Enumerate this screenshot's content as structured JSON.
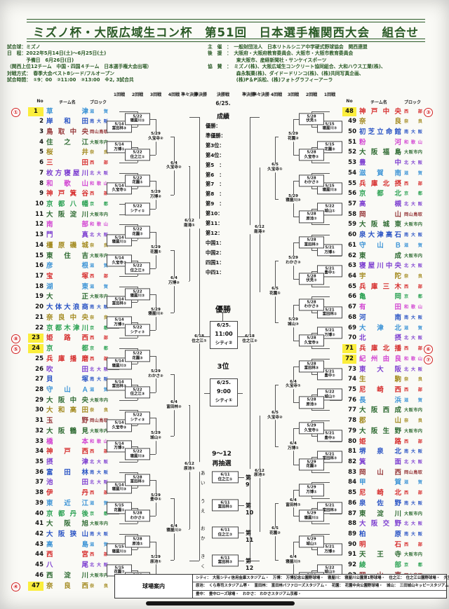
{
  "header": {
    "title": "ミズノ杯・大阪広域生コン杯　第51回　日本選手権関西大会　組合せ",
    "info_left": [
      "試合球：ミズノ",
      "日　程：2022年5月14日(土)～6月25日(土)",
      "　　　　予備日　6月26日(日)",
      "（関西上位12チーム　中国・四国４チーム　日本選手権大会出場）",
      "対戦方式：　春季大会ベスト8シード/フルオープン",
      "",
      "試合時間：　①9：00　②11:00　③13:00　※2, 3試合共"
    ],
    "info_right": [
      "主　催　：　一般財団法人　日本リトルシニア中学硬式野球協会　関西連盟",
      "後　援　：　大阪府・大阪府教育委員会、大阪市・大阪市教育委員会",
      "　　　　　　東大阪市、産経新聞社・サンケイスポーツ",
      "協　賛　：　ミズノ(株)、大阪広域生コンクリート協同組合、大和ハウス工業(株)、",
      "　　　　　　森永製菓(株)、ダイドードリンコ(株)、(株)共同写真企画、",
      "　　　　　　(株)P＆P浜松、(株)フォトグラフィーアーラ"
    ]
  },
  "round_headers_left": [
    "1回戦",
    "2回戦",
    "3回戦",
    "4回戦",
    "準々決勝",
    "準決勝"
  ],
  "round_headers_right": [
    "準決勝",
    "準々決勝",
    "4回戦",
    "3回戦",
    "2回戦",
    "1回戦"
  ],
  "final_header": {
    "label": "決勝戦",
    "date": "6/25."
  },
  "col_headers": {
    "no": "No",
    "team": "チーム名",
    "block": "ブロック"
  },
  "block_colors": {
    "滋賀": "#3d94d6",
    "南大阪": "#2953c4",
    "岡山鳥取": "#96383a",
    "大阪市内": "#2f6b33",
    "奈良": "#a38a1f",
    "西部": "#d62e2e",
    "北大阪": "#7d3fd0",
    "和歌山": "#d245d2",
    "京都": "#2fa356"
  },
  "teams_left": [
    {
      "no": 1,
      "name": "草津",
      "block": "滋賀",
      "seed": "①",
      "hl": true
    },
    {
      "no": 2,
      "name": "岸和田",
      "block": "南大阪"
    },
    {
      "no": 3,
      "name": "鳥取中央",
      "block": "岡山鳥取"
    },
    {
      "no": 4,
      "name": "住之江",
      "block": "大阪市内"
    },
    {
      "no": 5,
      "name": "桜井",
      "block": "奈良"
    },
    {
      "no": 6,
      "name": "三田",
      "block": "西部"
    },
    {
      "no": 7,
      "name": "枚方寝屋川",
      "block": "北大阪"
    },
    {
      "no": 8,
      "name": "和歌山",
      "block": "和歌山"
    },
    {
      "no": 9,
      "name": "神戸箕谷",
      "block": "西部"
    },
    {
      "no": 10,
      "name": "京都八幡",
      "block": "京都"
    },
    {
      "no": 11,
      "name": "大阪淀川",
      "block": "大阪市内"
    },
    {
      "no": 12,
      "name": "南部",
      "block": "和歌山"
    },
    {
      "no": 13,
      "name": "門真",
      "block": "北大阪"
    },
    {
      "no": 14,
      "name": "橿原磯城",
      "block": "奈良"
    },
    {
      "no": 15,
      "name": "東住吉",
      "block": "大阪市内"
    },
    {
      "no": 16,
      "name": "彦根",
      "block": "滋賀"
    },
    {
      "no": 17,
      "name": "宝塚",
      "block": "西部"
    },
    {
      "no": 18,
      "name": "湖東",
      "block": "滋賀"
    },
    {
      "no": 19,
      "name": "大正",
      "block": "大阪市内"
    },
    {
      "no": 20,
      "name": "大体大浪商",
      "block": "南大阪"
    },
    {
      "no": 21,
      "name": "奈良中央",
      "block": "奈良"
    },
    {
      "no": 22,
      "name": "京都木津川",
      "block": "京都"
    },
    {
      "no": 23,
      "name": "姫路西",
      "block": "西部",
      "seed": "⑧",
      "hl": true
    },
    {
      "no": 24,
      "name": "京都",
      "block": "京都",
      "seed": "⑤",
      "hl": true
    },
    {
      "no": 25,
      "name": "兵庫播磨",
      "block": "西部"
    },
    {
      "no": 26,
      "name": "吹田",
      "block": "北大阪"
    },
    {
      "no": 27,
      "name": "貝塚",
      "block": "南大阪"
    },
    {
      "no": 28,
      "name": "守山Ａ",
      "block": "滋賀"
    },
    {
      "no": 29,
      "name": "大阪中央",
      "block": "大阪市内"
    },
    {
      "no": 30,
      "name": "大和高田",
      "block": "奈良"
    },
    {
      "no": 31,
      "name": "玉野",
      "block": "岡山鳥取"
    },
    {
      "no": 32,
      "name": "大阪鶴見",
      "block": "大阪市内"
    },
    {
      "no": 33,
      "name": "橋本",
      "block": "和歌山"
    },
    {
      "no": 34,
      "name": "神戸西",
      "block": "西部"
    },
    {
      "no": 35,
      "name": "摂津",
      "block": "北大阪"
    },
    {
      "no": 36,
      "name": "富田林",
      "block": "南大阪"
    },
    {
      "no": 37,
      "name": "池田",
      "block": "北大阪"
    },
    {
      "no": 38,
      "name": "伊丹",
      "block": "西部"
    },
    {
      "no": 39,
      "name": "東近江",
      "block": "滋賀"
    },
    {
      "no": 40,
      "name": "京都丹後",
      "block": "京都"
    },
    {
      "no": 41,
      "name": "大阪旭",
      "block": "大阪市内"
    },
    {
      "no": 42,
      "name": "大阪狭山",
      "block": "南大阪"
    },
    {
      "no": 43,
      "name": "高島",
      "block": "滋賀"
    },
    {
      "no": 44,
      "name": "西宮",
      "block": "西部"
    },
    {
      "no": 45,
      "name": "八尾",
      "block": "北大阪"
    },
    {
      "no": 46,
      "name": "西淀川",
      "block": "大阪市内"
    },
    {
      "no": 47,
      "name": "奈良西",
      "block": "奈良",
      "seed": "④",
      "hl": true
    }
  ],
  "teams_right": [
    {
      "no": 48,
      "name": "神戸中央",
      "block": "西部",
      "seed": "③",
      "hl": true
    },
    {
      "no": 49,
      "name": "奈良",
      "block": "奈良"
    },
    {
      "no": 50,
      "name": "初芝立命館",
      "block": "南大阪"
    },
    {
      "no": 51,
      "name": "粉河",
      "block": "和歌山"
    },
    {
      "no": 52,
      "name": "大阪福島",
      "block": "大阪市内"
    },
    {
      "no": 53,
      "name": "豊中",
      "block": "北大阪"
    },
    {
      "no": 54,
      "name": "滋賀南",
      "block": "滋賀"
    },
    {
      "no": 55,
      "name": "兵庫北摂",
      "block": "西部"
    },
    {
      "no": 56,
      "name": "京都北",
      "block": "京都"
    },
    {
      "no": 57,
      "name": "高槻",
      "block": "北大阪"
    },
    {
      "no": 58,
      "name": "岡山",
      "block": "岡山鳥取"
    },
    {
      "no": 59,
      "name": "大阪城東",
      "block": "大阪市内"
    },
    {
      "no": 60,
      "name": "泉大津高石",
      "block": "南大阪"
    },
    {
      "no": 61,
      "name": "守山Ｂ",
      "block": "滋賀"
    },
    {
      "no": 62,
      "name": "東成",
      "block": "大阪市内"
    },
    {
      "no": 63,
      "name": "寝屋川中央",
      "block": "北大阪"
    },
    {
      "no": 64,
      "name": "宇陀",
      "block": "奈良"
    },
    {
      "no": 65,
      "name": "兵庫三木",
      "block": "西部"
    },
    {
      "no": 66,
      "name": "亀岡",
      "block": "京都"
    },
    {
      "no": 67,
      "name": "有田",
      "block": "和歌山"
    },
    {
      "no": 68,
      "name": "河南",
      "block": "南大阪"
    },
    {
      "no": 69,
      "name": "大津北",
      "block": "滋賀"
    },
    {
      "no": 70,
      "name": "北摂",
      "block": "北大阪"
    },
    {
      "no": 71,
      "name": "兵庫北播",
      "block": "西部",
      "seed": "⑥",
      "hl": true
    },
    {
      "no": 72,
      "name": "紀州由良",
      "block": "和歌山",
      "seed": "⑦",
      "hl": true
    },
    {
      "no": 73,
      "name": "東大阪",
      "block": "北大阪"
    },
    {
      "no": 74,
      "name": "生駒",
      "block": "奈良"
    },
    {
      "no": 75,
      "name": "尼崎西",
      "block": "西部"
    },
    {
      "no": 76,
      "name": "長浜",
      "block": "滋賀"
    },
    {
      "no": 77,
      "name": "大阪西成",
      "block": "大阪市内"
    },
    {
      "no": 78,
      "name": "郡山",
      "block": "奈良"
    },
    {
      "no": 79,
      "name": "大阪生野",
      "block": "大阪市内"
    },
    {
      "no": 80,
      "name": "姫路",
      "block": "西部"
    },
    {
      "no": 81,
      "name": "堺泉北",
      "block": "南大阪"
    },
    {
      "no": 82,
      "name": "箕面",
      "block": "北大阪"
    },
    {
      "no": 83,
      "name": "岡山西",
      "block": "岡山鳥取"
    },
    {
      "no": 84,
      "name": "甲賀",
      "block": "滋賀"
    },
    {
      "no": 85,
      "name": "尼崎北",
      "block": "西部"
    },
    {
      "no": 86,
      "name": "泉佐野",
      "block": "南大阪"
    },
    {
      "no": 87,
      "name": "東淀川",
      "block": "大阪市内"
    },
    {
      "no": 88,
      "name": "大阪交野",
      "block": "北大阪"
    },
    {
      "no": 89,
      "name": "柏原",
      "block": "南大阪"
    },
    {
      "no": 90,
      "name": "明石",
      "block": "西部"
    },
    {
      "no": 91,
      "name": "天王寺",
      "block": "大阪市内"
    },
    {
      "no": 92,
      "name": "綾部",
      "block": "京都"
    },
    {
      "no": 93,
      "name": "岡山東",
      "block": "岡山鳥取"
    },
    {
      "no": 94,
      "name": "五條",
      "block": "奈良",
      "seed": "②",
      "hl": true
    }
  ],
  "matches_left": {
    "r1": [
      [
        2,
        3,
        "5/14",
        "富田林③"
      ],
      [
        4,
        5,
        "5/14",
        "万博①"
      ],
      [
        8,
        9,
        "5/14",
        "久宝寺①"
      ],
      [
        13,
        14,
        "5/14",
        "寝屋川①"
      ],
      [
        15,
        16,
        "5/14",
        "久宝寺②"
      ],
      [
        19,
        20,
        "5/14",
        "富田林①"
      ],
      [
        21,
        22,
        "5/14",
        "万博②"
      ],
      [
        25,
        26,
        "5/14",
        "寝屋川②"
      ],
      [
        27,
        28,
        "5/14",
        "富田林②"
      ],
      [
        31,
        32,
        "5/14",
        "久宝寺③"
      ],
      [
        33,
        34,
        "5/14",
        "万博③"
      ],
      [
        37,
        38,
        "5/14",
        "寝屋川③"
      ],
      [
        39,
        40,
        "5/15",
        "花園①"
      ],
      [
        43,
        44,
        "5/15",
        "寝屋川①"
      ],
      [
        45,
        46,
        "5/15",
        "花園②"
      ]
    ],
    "r2": [
      [
        1,
        2.5,
        "5/22",
        "寝屋川①"
      ],
      [
        4.5,
        6,
        "5/22",
        "住之江①"
      ],
      [
        7,
        8.5,
        "5/22",
        "花園①"
      ],
      [
        10,
        11,
        "5/22",
        "シティ①"
      ],
      [
        12,
        13.5,
        "5/22",
        "花園②"
      ],
      [
        15.5,
        17,
        "5/22",
        "住之江②"
      ],
      [
        18,
        19.5,
        "5/22",
        "寝屋川②"
      ],
      [
        21.5,
        23,
        "5/22",
        "シティ②"
      ],
      [
        24,
        25.5,
        "5/22",
        "花園③"
      ],
      [
        27.5,
        29,
        "5/22",
        "住之江③"
      ],
      [
        30,
        31.5,
        "5/22",
        "シティ③"
      ],
      [
        33.5,
        35,
        "5/22",
        "寝屋川③"
      ],
      [
        36,
        37.5,
        "5/28",
        "富田林①"
      ],
      [
        39.5,
        41,
        "5/28",
        "わかさ①"
      ],
      [
        42,
        43.5,
        "5/28",
        "原池①"
      ],
      [
        45.5,
        47,
        "5/28",
        "久宝寺①"
      ]
    ],
    "r3": [
      [
        1.75,
        5.25,
        "5/29",
        "久宝寺②"
      ],
      [
        7.75,
        10.5,
        "5/29",
        "万博②"
      ],
      [
        12.75,
        16.25,
        "5/29",
        "花園①"
      ],
      [
        18.75,
        22.25,
        "5/29",
        "寝屋川②"
      ],
      [
        24.75,
        28.25,
        "5/29",
        "わかさ②"
      ],
      [
        30.75,
        34.25,
        "5/29",
        "城山②"
      ],
      [
        36.75,
        40.25,
        "5/29",
        "豊中①"
      ],
      [
        42.75,
        46.25,
        "5/29",
        "原池①"
      ]
    ],
    "r4": [
      [
        3.5,
        9.1,
        "6/4",
        "久宝寺②"
      ],
      [
        14.5,
        20.5,
        "6/4",
        "万博②"
      ],
      [
        26.5,
        32.5,
        "6/4",
        "富田林②"
      ],
      [
        38.5,
        44.5,
        "6/4",
        "寝屋川②"
      ]
    ],
    "qf": [
      [
        6.3,
        17.5,
        "6/12",
        "南港①"
      ],
      [
        29.5,
        41.5,
        "6/12",
        "原池①"
      ]
    ],
    "sf": [
      [
        1.6,
        44.6,
        "6/18",
        "住之江①"
      ]
    ]
  },
  "matches_right": {
    "r1": [
      [
        2,
        3,
        "5/15",
        "寝屋川②"
      ],
      [
        4,
        5,
        "5/15",
        "花園③"
      ],
      [
        8,
        9,
        "5/15",
        "寝屋川③"
      ],
      [
        10,
        11,
        "5/22",
        "城山①"
      ],
      [
        14,
        15,
        "5/21",
        "万博①"
      ],
      [
        16,
        17,
        "5/21",
        "豊中①"
      ],
      [
        20,
        21,
        "5/21",
        "富田林①"
      ],
      [
        22,
        23,
        "5/21",
        "万博②"
      ],
      [
        26,
        27,
        "5/21",
        "豊中②"
      ],
      [
        28,
        29,
        "5/22",
        "城山②"
      ],
      [
        32,
        33,
        "5/21",
        "豊中③"
      ],
      [
        34,
        35,
        "5/21",
        "富田林②"
      ],
      [
        39,
        40,
        "5/21",
        "富田林③"
      ],
      [
        43,
        44,
        "5/21",
        "万博③"
      ],
      [
        45,
        46,
        "5/22",
        "城山③"
      ]
    ],
    "r2": [
      [
        1,
        2.5,
        "5/28",
        "伏見①"
      ],
      [
        4.5,
        6,
        "5/28",
        "久宝寺②"
      ],
      [
        7,
        8.5,
        "5/28",
        "わかさ②"
      ],
      [
        10.5,
        12,
        "5/28",
        "原池②"
      ],
      [
        13,
        14.5,
        "5/28",
        "富田林②"
      ],
      [
        16.5,
        18,
        "5/28",
        "伏見②"
      ],
      [
        19,
        20.5,
        "5/28",
        "わかさ③"
      ],
      [
        22.5,
        24,
        "5/28",
        "久宝寺③"
      ],
      [
        25,
        26.5,
        "5/28",
        "富田林③"
      ],
      [
        28.5,
        30,
        "5/28",
        "原池③"
      ],
      [
        31,
        32.5,
        "5/29",
        "久宝寺①"
      ],
      [
        34.5,
        36,
        "5/29",
        "花園③"
      ],
      [
        37,
        38.5,
        "5/29",
        "万博①"
      ],
      [
        39.5,
        41,
        "5/29",
        "寝屋川①"
      ],
      [
        42,
        43.5,
        "5/29",
        "城山①"
      ],
      [
        45.5,
        47,
        "5/29",
        "わかさ①"
      ]
    ],
    "r3": [
      [
        1.75,
        5.25,
        "5/29",
        "花園②"
      ],
      [
        7.75,
        11.25,
        "5/29",
        "寝屋川③"
      ],
      [
        13.75,
        17.25,
        "5/29",
        "わかさ③"
      ],
      [
        19.75,
        23.25,
        "5/29",
        "城山③"
      ],
      [
        25.75,
        29.25,
        "6/4",
        "久宝寺①"
      ],
      [
        31.75,
        35.25,
        "6/4",
        "万博①"
      ],
      [
        37.75,
        40.25,
        "6/4",
        "富田林①"
      ],
      [
        42.75,
        46.25,
        "6/4",
        "寝屋川①"
      ]
    ],
    "r4": [
      [
        3.5,
        9.5,
        "6/5",
        "久宝寺①"
      ],
      [
        15.5,
        21.5,
        "6/5",
        "花園①"
      ],
      [
        27.5,
        33.5,
        "6/5",
        "久宝寺②"
      ],
      [
        39,
        44.5,
        "6/5",
        "花園②"
      ]
    ],
    "qf": [
      [
        6.5,
        18.5,
        "6/12",
        "南港②"
      ],
      [
        30.5,
        41.75,
        "6/12",
        "原池②"
      ]
    ],
    "sf": [
      [
        1.6,
        44.6,
        "6/18",
        "住之江②"
      ]
    ]
  },
  "center": {
    "seiseki_title": "成績",
    "standings": [
      "優勝：",
      "準優勝：",
      "第3位：",
      "第4位：",
      "第5　：",
      "第6　：",
      "第7　：",
      "第8　：",
      "第9　：",
      "第10：",
      "第11：",
      "第12：",
      "中国1：",
      "中国2：",
      "四国1：",
      "中四1："
    ],
    "champion_label": "優勝",
    "final_box": [
      "6/25.",
      "11:00",
      "シティ②"
    ],
    "third_label": "3位",
    "third_box": [
      "6/25.",
      "9:00",
      "シティ①"
    ],
    "redraw_title_1": "9～12",
    "redraw_title_2": "再抽選",
    "redraw": [
      {
        "letters": [
          "あ",
          "い"
        ],
        "date": "6/11",
        "venue": "住之江①",
        "place": "第9"
      },
      {
        "letters": [
          "う",
          "え"
        ],
        "date": "6/11",
        "venue": "富田林①",
        "place": "第10"
      },
      {
        "letters": [
          "お",
          "か"
        ],
        "date": "6/11",
        "venue": "住之江②",
        "place": "第11"
      },
      {
        "letters": [
          "き",
          "く"
        ],
        "date": "6/11",
        "venue": "富田林②",
        "place": "第12"
      }
    ]
  },
  "venues": {
    "label": "球場案内",
    "lines": [
      "シティ：　大阪シティ信用金庫スタジアム・　万博：　万博記念公園野球場・　寝屋川：　寝屋川公園第1野球場・　住之江：　住之江公園野球場・　久宝寺：　久宝寺緑地野球場・",
      "原池：　くら寿司スタジアム堺・　富田林：　富田林バファローズスタジアム・　花園：　花園中央公園野球場・　城山：　三田城山キッピースタジアム・",
      "豊中：　豊中ローズ球場・　わかさ：　わかさスタジアム京都・"
    ]
  }
}
